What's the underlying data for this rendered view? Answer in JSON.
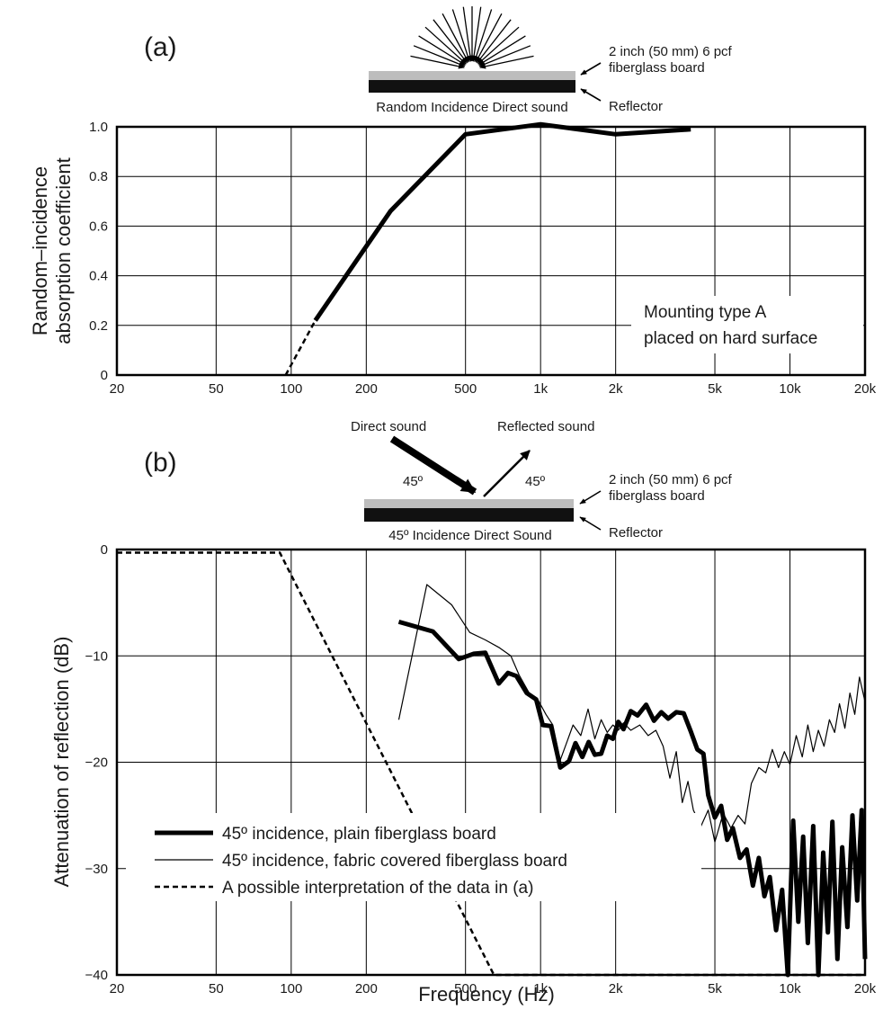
{
  "chart_data": [
    {
      "panel": "(a)",
      "type": "line",
      "diagram": {
        "arrow_caption": "Random Incidence Direct sound",
        "board_label_line1": "2 inch (50 mm) 6 pcf",
        "board_label_line2": "fiberglass board",
        "reflector_label": "Reflector"
      },
      "ylabel_line1": "Random–incidence",
      "ylabel_line2": "absorption coefficient",
      "xlabel": "",
      "x_scale": "log",
      "xlim": [
        20,
        20000
      ],
      "ylim": [
        0,
        1.0
      ],
      "xticks": [
        20,
        50,
        100,
        200,
        500,
        1000,
        2000,
        5000,
        10000,
        20000
      ],
      "xtick_labels": [
        "20",
        "50",
        "100",
        "200",
        "500",
        "1k",
        "2k",
        "5k",
        "10k",
        "20k"
      ],
      "yticks": [
        0,
        0.2,
        0.4,
        0.6,
        0.8,
        1.0
      ],
      "ytick_labels": [
        "0",
        "0.2",
        "0.4",
        "0.6",
        "0.8",
        "1.0"
      ],
      "annotation_line1": "Mounting type A",
      "annotation_line2": "placed on hard surface",
      "series": [
        {
          "style": "thick",
          "x": [
            125,
            250,
            500,
            1000,
            2000,
            4000
          ],
          "y": [
            0.22,
            0.66,
            0.97,
            1.01,
            0.97,
            0.99
          ]
        },
        {
          "style": "dashed",
          "x": [
            95,
            125
          ],
          "y": [
            0.0,
            0.22
          ]
        }
      ]
    },
    {
      "panel": "(b)",
      "type": "line",
      "diagram": {
        "direct_label": "Direct sound",
        "reflected_label": "Reflected sound",
        "angle_left": "45º",
        "angle_right": "45º",
        "arrow_caption": "45º Incidence Direct Sound",
        "board_label_line1": "2 inch (50 mm) 6 pcf",
        "board_label_line2": "fiberglass board",
        "reflector_label": "Reflector"
      },
      "ylabel": "Attenuation of reflection (dB)",
      "xlabel": "Frequency (Hz)",
      "x_scale": "log",
      "xlim": [
        20,
        20000
      ],
      "ylim": [
        -40,
        0
      ],
      "xticks": [
        20,
        50,
        100,
        200,
        500,
        1000,
        2000,
        5000,
        10000,
        20000
      ],
      "xtick_labels": [
        "20",
        "50",
        "100",
        "200",
        "500",
        "1k",
        "2k",
        "5k",
        "10k",
        "20k"
      ],
      "yticks": [
        0,
        -10,
        -20,
        -30,
        -40
      ],
      "ytick_labels": [
        "0",
        "−10",
        "−20",
        "−30",
        "−40"
      ],
      "legend_placement": "bottom-left",
      "series": [
        {
          "name": "45º incidence, plain fiberglass board",
          "style": "thick",
          "x": [
            270,
            370,
            470,
            540,
            600,
            680,
            740,
            800,
            880,
            960,
            1020,
            1100,
            1200,
            1300,
            1380,
            1470,
            1560,
            1650,
            1750,
            1850,
            1950,
            2050,
            2150,
            2300,
            2450,
            2650,
            2850,
            3050,
            3250,
            3500,
            3750,
            4000,
            4250,
            4500,
            4700,
            5000,
            5300,
            5600,
            5900,
            6300,
            6700,
            7100,
            7500,
            7900,
            8300,
            8800,
            9300,
            9800,
            10300,
            10800,
            11300,
            11800,
            12400,
            13000,
            13600,
            14200,
            14800,
            15500,
            16200,
            17000,
            17800,
            18600,
            19400,
            20000
          ],
          "y": [
            -6.8,
            -7.7,
            -10.3,
            -9.8,
            -9.7,
            -12.6,
            -11.6,
            -11.9,
            -13.5,
            -14.1,
            -16.5,
            -16.6,
            -20.5,
            -19.9,
            -18.2,
            -19.5,
            -18.1,
            -19.3,
            -19.2,
            -17.5,
            -17.8,
            -16.2,
            -16.9,
            -15.2,
            -15.6,
            -14.6,
            -16.1,
            -15.3,
            -15.9,
            -15.3,
            -15.4,
            -17.1,
            -18.8,
            -19.2,
            -23.1,
            -25.2,
            -24.1,
            -27.3,
            -26.2,
            -29.0,
            -28.2,
            -31.6,
            -29.0,
            -32.6,
            -30.8,
            -35.8,
            -32.0,
            -40.0,
            -25.5,
            -35.0,
            -27.0,
            -37.0,
            -26.0,
            -40.0,
            -28.5,
            -36.0,
            -25.6,
            -38.5,
            -28.0,
            -35.5,
            -25.0,
            -33.0,
            -24.5,
            -38.5
          ]
        },
        {
          "name": "45º incidence, fabric covered fiberglass board",
          "style": "thin",
          "x": [
            270,
            350,
            440,
            520,
            600,
            680,
            760,
            820,
            900,
            980,
            1050,
            1120,
            1200,
            1280,
            1350,
            1450,
            1550,
            1650,
            1750,
            1850,
            1950,
            2050,
            2150,
            2300,
            2500,
            2700,
            2900,
            3100,
            3300,
            3500,
            3700,
            3900,
            4100,
            4400,
            4700,
            5000,
            5400,
            5800,
            6200,
            6600,
            7000,
            7500,
            8000,
            8500,
            9000,
            9500,
            10000,
            10600,
            11200,
            11800,
            12400,
            13000,
            13700,
            14400,
            15100,
            15800,
            16600,
            17400,
            18200,
            19000,
            20000
          ],
          "y": [
            -16.0,
            -3.3,
            -5.2,
            -7.8,
            -8.5,
            -9.2,
            -10.0,
            -11.8,
            -13.5,
            -14.2,
            -15.5,
            -16.5,
            -19.8,
            -18.0,
            -16.5,
            -17.5,
            -15.0,
            -17.8,
            -16.0,
            -17.2,
            -16.5,
            -17.0,
            -16.3,
            -17.0,
            -16.5,
            -17.5,
            -17.0,
            -18.5,
            -21.5,
            -19.0,
            -23.8,
            -21.8,
            -24.5,
            -26.0,
            -24.5,
            -27.5,
            -24.8,
            -26.2,
            -25.0,
            -25.8,
            -22.0,
            -20.5,
            -21.0,
            -18.8,
            -20.5,
            -19.0,
            -20.2,
            -17.5,
            -19.5,
            -16.5,
            -19.0,
            -17.0,
            -18.5,
            -16.0,
            -17.2,
            -14.5,
            -16.8,
            -13.5,
            -15.5,
            -12.0,
            -14.3
          ]
        },
        {
          "name": "A possible interpretation of the data in (a)",
          "style": "dashed",
          "x": [
            20,
            90,
            650,
            20000
          ],
          "y": [
            -0.3,
            -0.3,
            -40.0,
            -40.0
          ]
        }
      ]
    }
  ]
}
